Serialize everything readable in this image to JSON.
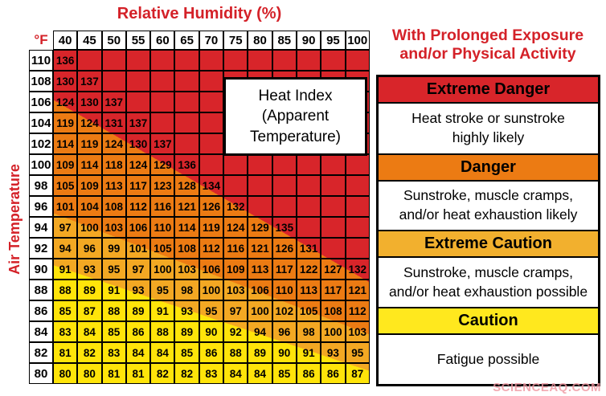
{
  "page": {
    "title_humidity": "Relative Humidity (%)",
    "unit": "°F",
    "y_axis": "Air Temperature",
    "watermark": "SCIENCEAQ.COM"
  },
  "overlay": {
    "lines": [
      "Heat Index",
      "(Apparent",
      "Temperature)"
    ]
  },
  "legend": {
    "title_lines": [
      "With Prolonged Exposure",
      "and/or Physical Activity"
    ],
    "entries": [
      {
        "label": "Extreme Danger",
        "color": "#d8252a",
        "desc_lines": [
          "Heat stroke or sunstroke",
          "highly likely"
        ]
      },
      {
        "label": "Danger",
        "color": "#ec7b13",
        "desc_lines": [
          "Sunstroke, muscle cramps,",
          "and/or heat exhaustion likely"
        ]
      },
      {
        "label": "Extreme Caution",
        "color": "#f2b02e",
        "desc_lines": [
          "Sunstroke, muscle cramps,",
          "and/or heat exhaustion possible"
        ]
      },
      {
        "label": "Caution",
        "color": "#ffe81e",
        "desc_lines": [
          "Fatigue possible"
        ]
      }
    ]
  },
  "colors": {
    "extreme_danger": "#d8252a",
    "danger": "#ec7b13",
    "extreme_caution": "#f3a823",
    "caution": "#ffe40a",
    "title_red": "#d42128",
    "watermark_pink": "#ef96a0"
  },
  "chart_data": {
    "type": "heatmap",
    "title": "Heat Index (Apparent Temperature)",
    "xlabel": "Relative Humidity (%)",
    "ylabel": "Air Temperature (°F)",
    "x": [
      40,
      45,
      50,
      55,
      60,
      65,
      70,
      75,
      80,
      85,
      90,
      95,
      100
    ],
    "y": [
      110,
      108,
      106,
      104,
      102,
      100,
      98,
      96,
      94,
      92,
      90,
      88,
      86,
      84,
      82,
      80
    ],
    "values": [
      [
        136,
        null,
        null,
        null,
        null,
        null,
        null,
        null,
        null,
        null,
        null,
        null,
        null
      ],
      [
        130,
        137,
        null,
        null,
        null,
        null,
        null,
        null,
        null,
        null,
        null,
        null,
        null
      ],
      [
        124,
        130,
        137,
        null,
        null,
        null,
        null,
        null,
        null,
        null,
        null,
        null,
        null
      ],
      [
        119,
        124,
        131,
        137,
        null,
        null,
        null,
        null,
        null,
        null,
        null,
        null,
        null
      ],
      [
        114,
        119,
        124,
        130,
        137,
        null,
        null,
        null,
        null,
        null,
        null,
        null,
        null
      ],
      [
        109,
        114,
        118,
        124,
        129,
        136,
        null,
        null,
        null,
        null,
        null,
        null,
        null
      ],
      [
        105,
        109,
        113,
        117,
        123,
        128,
        134,
        null,
        null,
        null,
        null,
        null,
        null
      ],
      [
        101,
        104,
        108,
        112,
        116,
        121,
        126,
        132,
        null,
        null,
        null,
        null,
        null
      ],
      [
        97,
        100,
        103,
        106,
        110,
        114,
        119,
        124,
        129,
        135,
        null,
        null,
        null
      ],
      [
        94,
        96,
        99,
        101,
        105,
        108,
        112,
        116,
        121,
        126,
        131,
        null,
        null
      ],
      [
        91,
        93,
        95,
        97,
        100,
        103,
        106,
        109,
        113,
        117,
        122,
        127,
        132
      ],
      [
        88,
        89,
        91,
        93,
        95,
        98,
        100,
        103,
        106,
        110,
        113,
        117,
        121
      ],
      [
        85,
        87,
        88,
        89,
        91,
        93,
        95,
        97,
        100,
        102,
        105,
        108,
        112
      ],
      [
        83,
        84,
        85,
        86,
        88,
        89,
        90,
        92,
        94,
        96,
        98,
        100,
        103
      ],
      [
        81,
        82,
        83,
        84,
        84,
        85,
        86,
        88,
        89,
        90,
        91,
        93,
        95
      ],
      [
        80,
        80,
        81,
        81,
        82,
        82,
        83,
        84,
        84,
        85,
        86,
        86,
        87
      ]
    ],
    "legend_entries": [
      "Extreme Danger",
      "Danger",
      "Extreme Caution",
      "Caution"
    ],
    "legend_position": "right",
    "grid": true
  }
}
